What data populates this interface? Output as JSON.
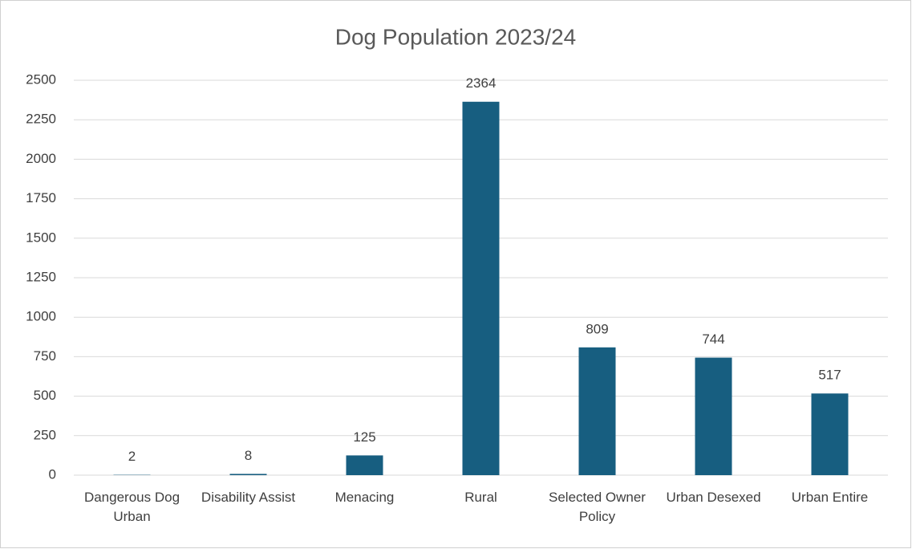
{
  "chart_data": {
    "type": "bar",
    "title": "Dog Population 2023/24",
    "categories": [
      "Dangerous Dog Urban",
      "Disability Assist",
      "Menacing",
      "Rural",
      "Selected Owner Policy",
      "Urban Desexed",
      "Urban Entire"
    ],
    "values": [
      2,
      8,
      125,
      2364,
      809,
      744,
      517
    ],
    "color": "#175e80",
    "ylim": [
      0,
      2500
    ],
    "yticks": [
      0,
      250,
      500,
      750,
      1000,
      1250,
      1500,
      1750,
      2000,
      2250,
      2500
    ],
    "grid": true
  }
}
